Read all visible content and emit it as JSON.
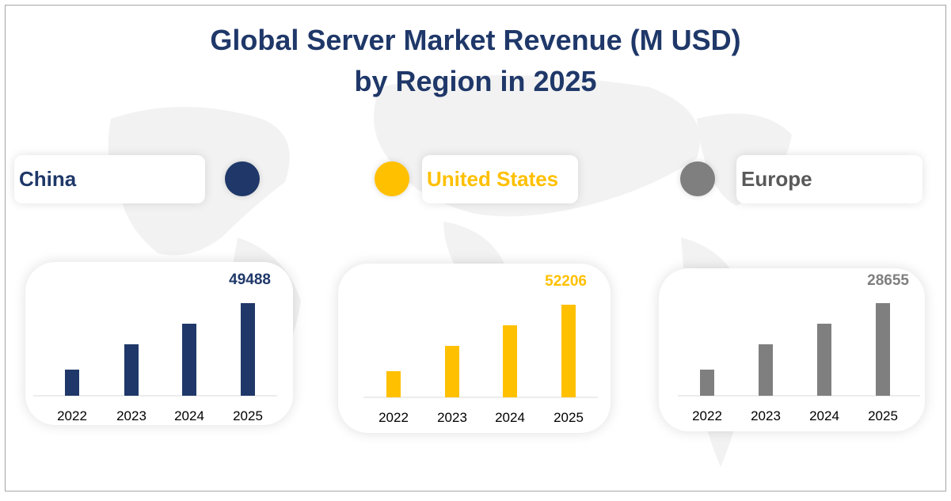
{
  "title_line1": "Global Server Market Revenue (M USD)",
  "title_line2": "by Region in 2025",
  "chart_data": [
    {
      "type": "bar",
      "region": "China",
      "color": "#1f3869",
      "categories": [
        "2022",
        "2023",
        "2024",
        "2025"
      ],
      "values": [
        13958,
        27494,
        38490,
        49488
      ],
      "data_label": "49488"
    },
    {
      "type": "bar",
      "region": "United States",
      "color": "#ffc000",
      "categories": [
        "2022",
        "2023",
        "2024",
        "2025"
      ],
      "values": [
        14724,
        29003,
        40602,
        52206
      ],
      "data_label": "52206"
    },
    {
      "type": "bar",
      "region": "Europe",
      "color": "#7f7f7f",
      "categories": [
        "2022",
        "2023",
        "2024",
        "2025"
      ],
      "values": [
        8082,
        15919,
        22285,
        28655
      ],
      "data_label": "28655"
    }
  ]
}
